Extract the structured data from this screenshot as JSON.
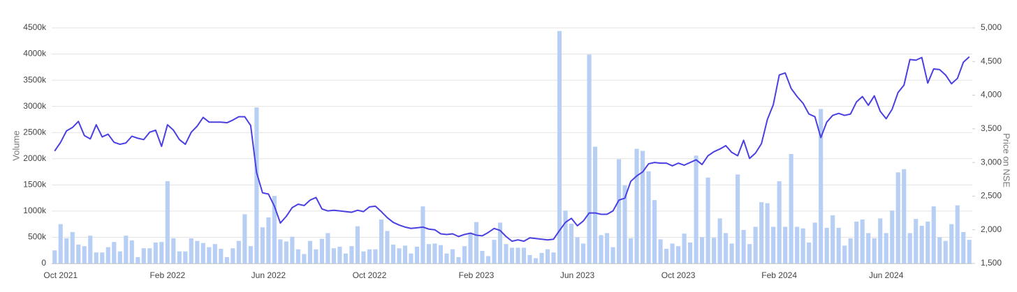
{
  "chart_data": {
    "type": "bar-line",
    "y_label": "Volume",
    "y2_label": "Price on NSE",
    "categories": [
      null,
      "Oct 2021",
      null,
      null,
      null,
      null,
      null,
      null,
      null,
      null,
      null,
      null,
      null,
      null,
      null,
      null,
      null,
      null,
      null,
      "Feb 2022",
      null,
      null,
      null,
      null,
      null,
      null,
      null,
      null,
      null,
      null,
      null,
      null,
      null,
      null,
      null,
      null,
      "Jun 2022",
      null,
      null,
      null,
      null,
      null,
      null,
      null,
      null,
      null,
      null,
      null,
      null,
      null,
      null,
      null,
      null,
      "Oct 2022",
      null,
      null,
      null,
      null,
      null,
      null,
      null,
      null,
      null,
      null,
      null,
      null,
      null,
      null,
      null,
      null,
      null,
      "Feb 2023",
      null,
      null,
      null,
      null,
      null,
      null,
      null,
      null,
      null,
      null,
      null,
      null,
      null,
      null,
      null,
      null,
      "Jun 2023",
      null,
      null,
      null,
      null,
      null,
      null,
      null,
      null,
      null,
      null,
      null,
      null,
      null,
      null,
      null,
      null,
      "Oct 2023",
      null,
      null,
      null,
      null,
      null,
      null,
      null,
      null,
      null,
      null,
      null,
      null,
      null,
      null,
      null,
      null,
      "Feb 2024",
      null,
      null,
      null,
      null,
      null,
      null,
      null,
      null,
      null,
      null,
      null,
      null,
      null,
      null,
      null,
      null,
      null,
      "Jun 2024",
      null,
      null,
      null,
      null,
      null,
      null,
      null,
      null,
      null,
      null,
      null,
      null,
      null,
      null
    ],
    "series": [
      {
        "type": "bar",
        "color": "#b8cff5",
        "values": [
          250000,
          750000,
          480000,
          600000,
          360000,
          330000,
          530000,
          210000,
          210000,
          310000,
          410000,
          230000,
          530000,
          440000,
          120000,
          290000,
          290000,
          400000,
          410000,
          1570000,
          480000,
          230000,
          230000,
          480000,
          430000,
          390000,
          310000,
          370000,
          280000,
          120000,
          290000,
          430000,
          940000,
          330000,
          2980000,
          690000,
          880000,
          1290000,
          460000,
          420000,
          510000,
          270000,
          180000,
          430000,
          270000,
          470000,
          580000,
          290000,
          320000,
          190000,
          330000,
          710000,
          230000,
          270000,
          270000,
          840000,
          620000,
          360000,
          290000,
          340000,
          190000,
          320000,
          1090000,
          370000,
          380000,
          350000,
          190000,
          270000,
          120000,
          330000,
          590000,
          790000,
          240000,
          140000,
          450000,
          780000,
          370000,
          300000,
          300000,
          300000,
          160000,
          100000,
          200000,
          270000,
          210000,
          4440000,
          1010000,
          760000,
          500000,
          380000,
          3990000,
          2230000,
          540000,
          580000,
          310000,
          1990000,
          1490000,
          480000,
          2190000,
          2150000,
          1760000,
          1210000,
          460000,
          280000,
          380000,
          330000,
          570000,
          400000,
          2060000,
          500000,
          1640000,
          490000,
          860000,
          580000,
          380000,
          1700000,
          640000,
          370000,
          700000,
          1170000,
          1150000,
          700000,
          1570000,
          700000,
          2090000,
          700000,
          670000,
          400000,
          780000,
          2950000,
          680000,
          920000,
          680000,
          340000,
          480000,
          800000,
          840000,
          580000,
          480000,
          860000,
          580000,
          1010000,
          1740000,
          1800000,
          580000,
          850000,
          720000,
          800000,
          1090000,
          500000,
          430000,
          750000,
          1110000,
          600000,
          450000
        ]
      },
      {
        "type": "line",
        "axis": "y2",
        "color": "#4a3fe0",
        "values": [
          3170,
          3300,
          3470,
          3520,
          3610,
          3400,
          3350,
          3560,
          3380,
          3420,
          3300,
          3270,
          3290,
          3390,
          3360,
          3340,
          3450,
          3480,
          3240,
          3560,
          3480,
          3340,
          3270,
          3450,
          3540,
          3670,
          3600,
          3600,
          3600,
          3590,
          3630,
          3680,
          3680,
          3550,
          2850,
          2550,
          2530,
          2350,
          2100,
          2200,
          2330,
          2380,
          2360,
          2440,
          2480,
          2310,
          2280,
          2290,
          2280,
          2270,
          2260,
          2290,
          2270,
          2340,
          2350,
          2270,
          2180,
          2110,
          2070,
          2040,
          2020,
          2030,
          2040,
          2010,
          2000,
          1940,
          1930,
          1940,
          1900,
          1930,
          1950,
          1920,
          1910,
          1960,
          2020,
          1990,
          1900,
          1830,
          1850,
          1830,
          1880,
          1870,
          1860,
          1850,
          1860,
          1990,
          2110,
          2170,
          2060,
          2130,
          2250,
          2250,
          2230,
          2230,
          2280,
          2440,
          2470,
          2720,
          2800,
          2860,
          2980,
          3000,
          2990,
          2990,
          2950,
          2990,
          2960,
          3000,
          3040,
          2970,
          3100,
          3160,
          3200,
          3250,
          3150,
          3100,
          3330,
          3060,
          3140,
          3280,
          3640,
          3860,
          4300,
          4330,
          4100,
          3980,
          3880,
          3720,
          3680,
          3370,
          3600,
          3700,
          3730,
          3700,
          3720,
          3900,
          3980,
          3850,
          3990,
          3760,
          3650,
          3790,
          4040,
          4150,
          4530,
          4520,
          4560,
          4180,
          4390,
          4380,
          4300,
          4170,
          4250,
          4490,
          4570
        ]
      }
    ],
    "ylim": [
      0,
      4500000
    ],
    "yticks": [
      0,
      {
        "value": 500000,
        "label": "500k"
      },
      {
        "value": 1000000,
        "label": "1000k"
      },
      {
        "value": 1500000,
        "label": "1500k"
      },
      {
        "value": 2000000,
        "label": "2000k"
      },
      {
        "value": 2500000,
        "label": "2500k"
      },
      {
        "value": 3000000,
        "label": "3000k"
      },
      {
        "value": 3500000,
        "label": "3500k"
      },
      {
        "value": 4000000,
        "label": "4000k"
      },
      {
        "value": 4500000,
        "label": "4500k"
      }
    ],
    "y2lim": [
      1500,
      5000
    ],
    "y2ticks": [
      {
        "value": 1500,
        "label": "1,500"
      },
      {
        "value": 2000,
        "label": "2,000"
      },
      {
        "value": 2500,
        "label": "2,500"
      },
      {
        "value": 3000,
        "label": "3,000"
      },
      {
        "value": 3500,
        "label": "3,500"
      },
      {
        "value": 4000,
        "label": "4,000"
      },
      {
        "value": 4500,
        "label": "4,500"
      },
      {
        "value": 5000,
        "label": "5,000"
      }
    ],
    "grid": true
  }
}
